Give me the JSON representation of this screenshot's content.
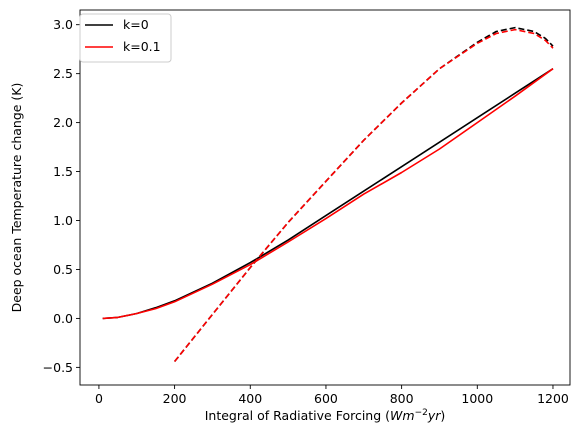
{
  "chart_data": {
    "type": "line",
    "xlabel_main": "Integral of Radiative Forcing (",
    "xlabel_unit_base": "Wm",
    "xlabel_unit_exp": "−2",
    "xlabel_unit_tail": "yr",
    "xlabel_close": ")",
    "ylabel": "Deep ocean Temperature change (K)",
    "xlim": [
      -50,
      1245
    ],
    "ylim": [
      -0.68,
      3.15
    ],
    "xticks": [
      0,
      200,
      400,
      600,
      800,
      1000,
      1200
    ],
    "yticks": [
      -0.5,
      0.0,
      0.5,
      1.0,
      1.5,
      2.0,
      2.5,
      3.0
    ],
    "ytick_labels": [
      "−0.5",
      "0.0",
      "0.5",
      "1.0",
      "1.5",
      "2.0",
      "2.5",
      "3.0"
    ],
    "grid": false,
    "legend_position": "top-left",
    "series": [
      {
        "name": "k=0",
        "color": "#000000",
        "style": "solid",
        "x": [
          10,
          50,
          100,
          150,
          200,
          300,
          400,
          500,
          600,
          700,
          800,
          900,
          1000,
          1100,
          1200
        ],
        "y": [
          0.0,
          0.01,
          0.05,
          0.11,
          0.18,
          0.36,
          0.57,
          0.8,
          1.05,
          1.3,
          1.55,
          1.8,
          2.05,
          2.3,
          2.55
        ]
      },
      {
        "name": "k=0.1",
        "color": "#ff0000",
        "style": "solid",
        "x": [
          10,
          50,
          100,
          150,
          200,
          300,
          400,
          500,
          600,
          700,
          800,
          900,
          1000,
          1100,
          1200
        ],
        "y": [
          0.0,
          0.01,
          0.05,
          0.1,
          0.17,
          0.35,
          0.55,
          0.78,
          1.02,
          1.27,
          1.49,
          1.73,
          2.0,
          2.27,
          2.55
        ]
      },
      {
        "name": "",
        "color": "#000000",
        "style": "dashed",
        "x": [
          200,
          300,
          400,
          500,
          600,
          700,
          800,
          900,
          1000,
          1050,
          1100,
          1150,
          1180,
          1200
        ],
        "y": [
          -0.44,
          0.04,
          0.52,
          0.98,
          1.4,
          1.82,
          2.2,
          2.55,
          2.82,
          2.93,
          2.97,
          2.93,
          2.86,
          2.78
        ]
      },
      {
        "name": "",
        "color": "#ff0000",
        "style": "dashed",
        "x": [
          200,
          300,
          400,
          500,
          600,
          700,
          800,
          900,
          1000,
          1050,
          1100,
          1150,
          1180,
          1200
        ],
        "y": [
          -0.44,
          0.04,
          0.52,
          0.98,
          1.4,
          1.82,
          2.2,
          2.55,
          2.81,
          2.91,
          2.95,
          2.91,
          2.84,
          2.76
        ]
      }
    ]
  }
}
